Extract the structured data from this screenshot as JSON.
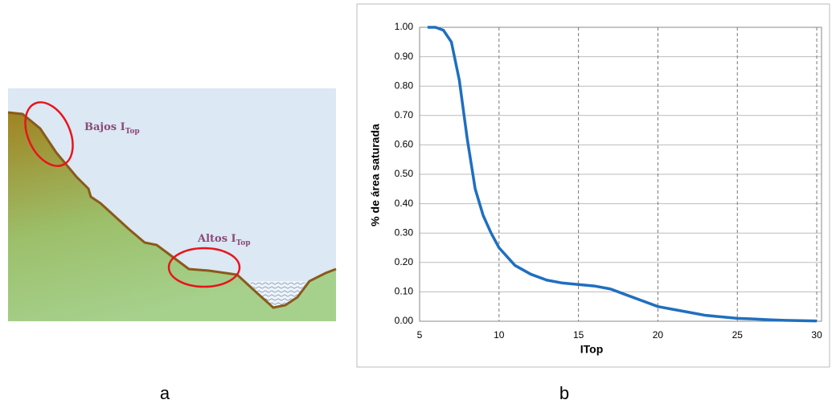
{
  "diagram": {
    "labels": [
      {
        "text": "Bajos I",
        "sub": "Top"
      },
      {
        "text": "Altos I",
        "sub": "Top"
      }
    ]
  },
  "captions": [
    "a",
    "b"
  ],
  "chart_data": {
    "type": "line",
    "x_label": "ITop",
    "y_label": "% de área saturada",
    "color": "#1f6fc0",
    "x": [
      5.5,
      6,
      6.5,
      7,
      7.5,
      8,
      8.5,
      9,
      9.5,
      10,
      10.5,
      11,
      12,
      13,
      14,
      15,
      16,
      17,
      18,
      19,
      20,
      21,
      22,
      23,
      24,
      25,
      26,
      27,
      28,
      29,
      30
    ],
    "values": [
      1.0,
      1.0,
      0.99,
      0.95,
      0.82,
      0.62,
      0.45,
      0.36,
      0.3,
      0.25,
      0.22,
      0.19,
      0.16,
      0.14,
      0.13,
      0.125,
      0.12,
      0.11,
      0.09,
      0.07,
      0.05,
      0.04,
      0.03,
      0.02,
      0.015,
      0.01,
      0.008,
      0.005,
      0.003,
      0.002,
      0.001
    ],
    "xlim": [
      5,
      30.3
    ],
    "xticks": [
      5,
      10,
      15,
      20,
      25,
      30
    ],
    "ylim": [
      0,
      1
    ],
    "yticks": [
      {
        "value": 0,
        "label": "0.00"
      },
      {
        "value": 0.1,
        "label": "0.10"
      },
      {
        "value": 0.2,
        "label": "0.20"
      },
      {
        "value": 0.3,
        "label": "0.30"
      },
      {
        "value": 0.4,
        "label": "0.40"
      },
      {
        "value": 0.5,
        "label": "0.50"
      },
      {
        "value": 0.6,
        "label": "0.60"
      },
      {
        "value": 0.7,
        "label": "0.70"
      },
      {
        "value": 0.8,
        "label": "0.80"
      },
      {
        "value": 0.9,
        "label": "0.90"
      },
      {
        "value": 1,
        "label": "1.00"
      }
    ],
    "grid": true
  }
}
